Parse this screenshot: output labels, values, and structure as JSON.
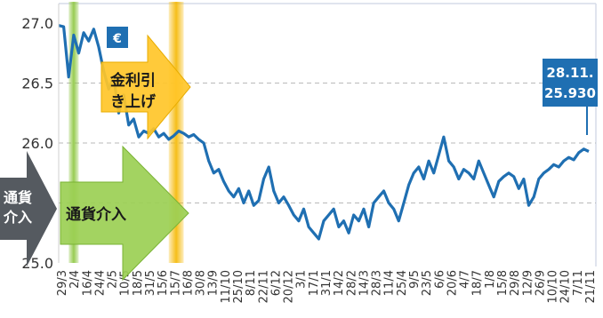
{
  "chart_data": {
    "type": "line",
    "currency_badge": "€",
    "ylim": [
      25.0,
      27.0
    ],
    "y_ticks": [
      "27.0",
      "26.5",
      "26.0",
      "25.0"
    ],
    "x_tick_labels": [
      "29/3",
      "2/4",
      "16/4",
      "24/4",
      "2/5",
      "10/5",
      "18/5",
      "31/5",
      "15/6",
      "15/7",
      "16/8",
      "30/8",
      "13/9",
      "11/10",
      "25/10",
      "8/11",
      "22/11",
      "6/12",
      "20/12",
      "3/1",
      "17/1",
      "31/1",
      "14/2",
      "28/2",
      "14/3",
      "28/3",
      "11/4",
      "25/4",
      "9/5",
      "23/5",
      "6/6",
      "20/6",
      "4/7",
      "18/7",
      "1/8",
      "15/8",
      "29/8",
      "12/9",
      "26/9",
      "10/10",
      "24/10",
      "7/11",
      "21/11"
    ],
    "series": [
      {
        "name": "",
        "color": "#1f6fb2",
        "values": [
          26.98,
          26.97,
          26.55,
          26.9,
          26.75,
          26.92,
          26.85,
          26.95,
          26.8,
          26.6,
          26.45,
          26.55,
          26.25,
          26.4,
          26.15,
          26.2,
          26.05,
          26.1,
          26.08,
          26.12,
          26.05,
          26.08,
          26.03,
          26.06,
          26.1,
          26.08,
          26.05,
          26.07,
          26.03,
          26.0,
          25.85,
          25.75,
          25.78,
          25.68,
          25.6,
          25.55,
          25.62,
          25.5,
          25.6,
          25.48,
          25.52,
          25.7,
          25.8,
          25.6,
          25.5,
          25.55,
          25.48,
          25.4,
          25.35,
          25.45,
          25.3,
          25.25,
          25.2,
          25.35,
          25.4,
          25.45,
          25.3,
          25.35,
          25.25,
          25.4,
          25.35,
          25.45,
          25.3,
          25.5,
          25.55,
          25.6,
          25.5,
          25.45,
          25.35,
          25.5,
          25.65,
          25.75,
          25.8,
          25.7,
          25.85,
          25.75,
          25.9,
          26.05,
          25.85,
          25.8,
          25.7,
          25.78,
          25.75,
          25.7,
          25.85,
          25.75,
          25.65,
          25.55,
          25.68,
          25.72,
          25.75,
          25.72,
          25.62,
          25.7,
          25.48,
          25.55,
          25.7,
          25.75,
          25.78,
          25.82,
          25.8,
          25.85,
          25.88,
          25.86,
          25.92,
          25.95,
          25.93
        ]
      }
    ],
    "highlight_bands": [
      {
        "color": "#8cc63f",
        "x_start_index": 2,
        "x_end_index": 4
      },
      {
        "color": "#f5b700",
        "x_start_index": 22,
        "x_end_index": 25
      }
    ],
    "annotations": {
      "rate_hike": "金利引き上げ",
      "rate_hike_lines": [
        "金利引",
        "き上げ"
      ],
      "fx_intervention": "通貨介入",
      "fx_intervention_left_lines": [
        "通貨",
        "介入"
      ],
      "last_date": "28.11.",
      "last_value": "25.930"
    },
    "grid": true,
    "gridline_style": "dashed",
    "legend": "none"
  }
}
